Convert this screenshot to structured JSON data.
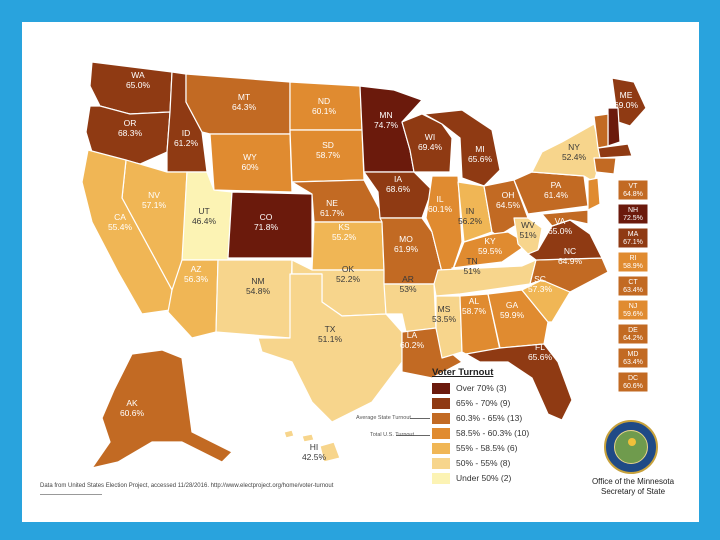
{
  "title": "Voter Turnout",
  "source_note": "Data from United States Election Project, accessed 11/28/2016. http://www.electproject.org/home/voter-turnout",
  "office": [
    "Office of the Minnesota",
    "Secretary of State"
  ],
  "legend": {
    "title": "Voter Turnout",
    "average_state_label": "Average State Turnout",
    "us_label": "Total U.S. Turnout",
    "items": [
      {
        "label": "Over 70% (3)",
        "color": "#6b1a0c"
      },
      {
        "label": "65% - 70% (9)",
        "color": "#8f3a13"
      },
      {
        "label": "60.3% - 65% (13)",
        "color": "#c26a23"
      },
      {
        "label": "58.5% - 60.3% (10)",
        "color": "#e08b30"
      },
      {
        "label": "55% - 58.5% (6)",
        "color": "#f0b655"
      },
      {
        "label": "50% - 55% (8)",
        "color": "#f7d58c"
      },
      {
        "label": "Under 50% (2)",
        "color": "#fcf3b4"
      }
    ]
  },
  "states": {
    "WA": "65.0%",
    "OR": "68.3%",
    "ID": "61.2%",
    "MT": "64.3%",
    "ND": "60.1%",
    "MN": "74.7%",
    "WI": "69.4%",
    "MI": "65.6%",
    "ME": "69.0%",
    "NH": "72.5%",
    "NY": "52.4%",
    "WY": "60%",
    "SD": "58.7%",
    "IA": "68.6%",
    "IL": "60.1%",
    "IN": "56.2%",
    "OH": "64.5%",
    "PA": "61.4%",
    "NV": "57.1%",
    "UT": "46.4%",
    "CO": "71.8%",
    "NE": "61.7%",
    "CA": "55.4%",
    "KS": "55.2%",
    "MO": "61.9%",
    "KY": "59.5%",
    "WV": "51%",
    "VA": "65.0%",
    "AZ": "56.3%",
    "NM": "54.8%",
    "OK": "52.2%",
    "AR": "53%",
    "TN": "51%",
    "NC": "64.9%",
    "SC": "57.3%",
    "MS": "53.5%",
    "AL": "58.7%",
    "GA": "59.9%",
    "TX": "51.1%",
    "LA": "60.2%",
    "FL": "65.6%",
    "AK": "60.6%",
    "HI": "42.5%"
  },
  "east_boxes": [
    {
      "abbr": "VT",
      "value": "64.8%"
    },
    {
      "abbr": "NH",
      "value": "72.5%"
    },
    {
      "abbr": "MA",
      "value": "67.1%"
    },
    {
      "abbr": "RI",
      "value": "58.9%"
    },
    {
      "abbr": "CT",
      "value": "63.4%"
    },
    {
      "abbr": "NJ",
      "value": "59.6%"
    },
    {
      "abbr": "DE",
      "value": "64.2%"
    },
    {
      "abbr": "MD",
      "value": "63.4%"
    },
    {
      "abbr": "DC",
      "value": "60.6%"
    }
  ],
  "colors": {
    "c1": "#6b1a0c",
    "c2": "#8f3a13",
    "c3": "#c26a23",
    "c4": "#e08b30",
    "c5": "#f0b655",
    "c6": "#f7d58c",
    "c7": "#fcf3b4",
    "frame": "#29a3dd"
  }
}
